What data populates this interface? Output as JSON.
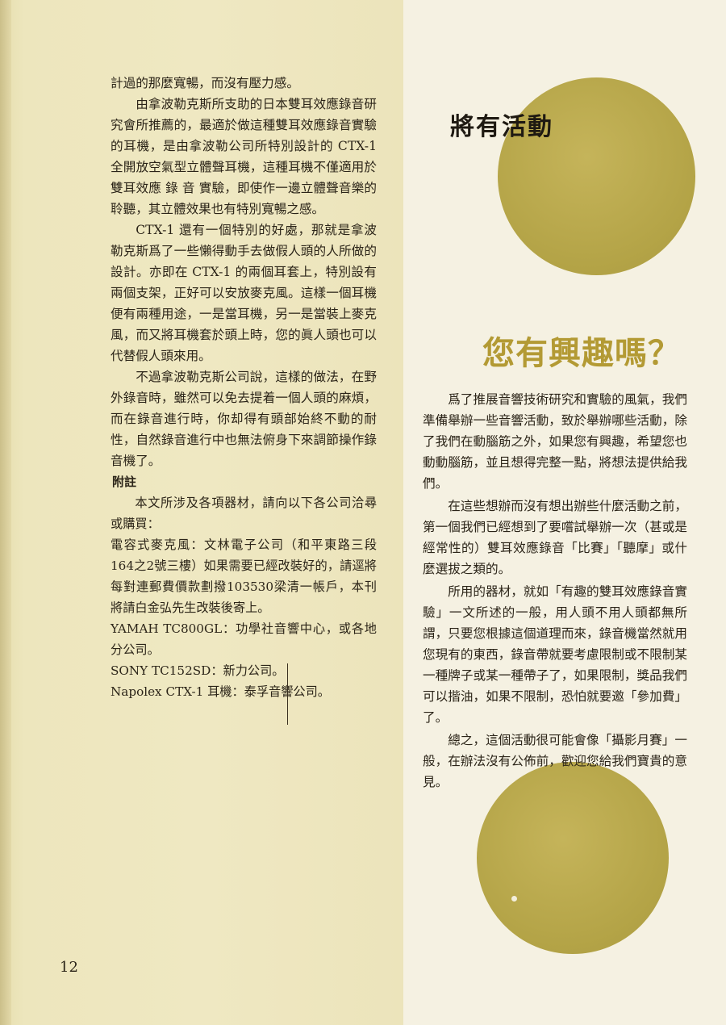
{
  "page_number": "12",
  "colors": {
    "circle": "#b8a84c",
    "heading_accent": "#b39a34",
    "left_panel": "#ede6bd"
  },
  "left_column": {
    "paragraphs": [
      "計過的那麼寬暢，而沒有壓力感。",
      "由拿波勒克斯所支助的日本雙耳效應錄音研究會所推薦的，最適於做這種雙耳效應錄音實驗的耳機，是由拿波勒公司所特別設計的 CTX-1 全開放空氣型立體聲耳機，這種耳機不僅適用於雙耳效應 錄 音 實驗，即使作一邊立體聲音樂的聆聽，其立體效果也有特別寬暢之感。",
      "CTX-1 還有一個特別的好處，那就是拿波勒克斯爲了一些懶得動手去做假人頭的人所做的設計。亦即在 CTX-1 的兩個耳套上，特別設有兩個支架，正好可以安放麥克風。這樣一個耳機便有兩種用途，一是當耳機，另一是當裝上麥克風，而又將耳機套於頭上時，您的眞人頭也可以代替假人頭來用。",
      "不過拿波勒克斯公司說，這樣的做法，在野外錄音時，雖然可以免去提着一個人頭的麻煩，而在錄音進行時，你却得有頭部始終不動的耐性，自然錄音進行中也無法俯身下來調節操作錄音機了。"
    ],
    "note": {
      "heading": "附註",
      "intro": "本文所涉及各項器材，請向以下各公司洽尋或購買：",
      "items": [
        "電容式麥克風：文林電子公司（和平東路三段164之2號三樓）如果需要已經改裝好的，請逕將每對連郵費價款劃撥103530梁清一帳戶，本刊將請白金弘先生改裝後寄上。",
        "YAMAH TC800GL：功學社音響中心，或各地分公司。",
        "SONY TC152SD：新力公司。",
        "Napolex CTX-1 耳機：泰孚音響公司。"
      ]
    }
  },
  "right_column": {
    "heading_upcoming": "將有活動",
    "heading_interest": "您有興趣嗎？",
    "paragraphs": [
      "爲了推展音響技術研究和實驗的風氣，我們準備舉辦一些音響活動，致於舉辦哪些活動，除了我們在動腦筋之外，如果您有興趣，希望您也動動腦筋，並且想得完整一點，將想法提供給我們。",
      "在這些想辦而沒有想出辦些什麼活動之前，第一個我們已經想到了要嚐試舉辦一次（甚或是經常性的）雙耳效應錄音「比賽」「聽摩」或什麼選拔之類的。",
      "所用的器材，就如「有趣的雙耳效應錄音實驗」一文所述的一般，用人頭不用人頭都無所謂，只要您根據這個道理而來，錄音機當然就用您現有的東西，錄音帶就要考慮限制或不限制某一種牌子或某一種帶子了，如果限制，獎品我們可以揩油，如果不限制，恐怕就要邀「參加費」了。",
      "總之，這個活動很可能會像「攝影月賽」一般，在辦法沒有公佈前，歡迎您給我們寶貴的意見。"
    ]
  }
}
